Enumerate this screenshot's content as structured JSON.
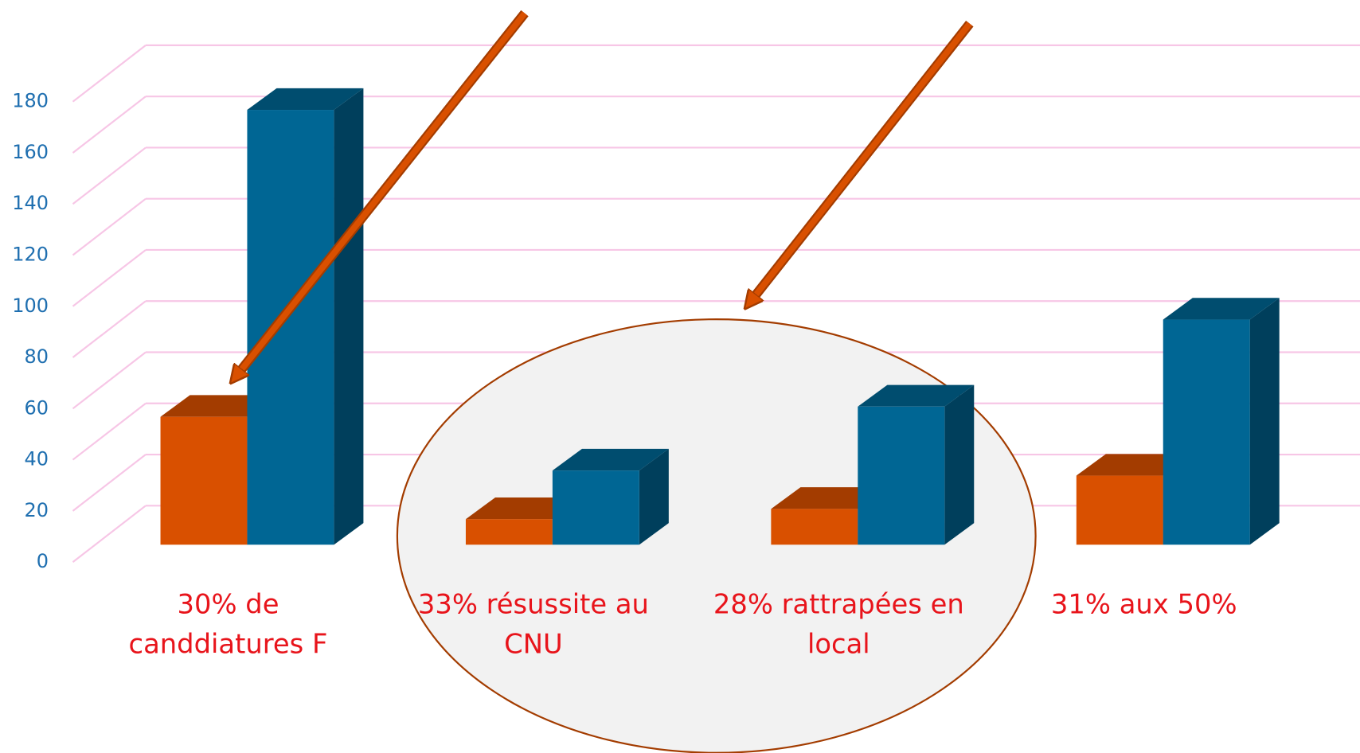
{
  "chart_data": {
    "type": "bar3d",
    "categories": [
      "30% de canddiatures F",
      "33% résussite au CNU",
      "28% rattrapées en local",
      "31% aux 50%"
    ],
    "series": [
      {
        "color": "#d95000",
        "values": [
          50,
          10,
          14,
          27
        ]
      },
      {
        "color": "#006694",
        "values": [
          170,
          29,
          54,
          88
        ]
      }
    ],
    "ylim": [
      0,
      180
    ],
    "yticks": [
      0,
      20,
      40,
      60,
      80,
      100,
      120,
      140,
      160,
      180
    ],
    "grid": true
  }
}
